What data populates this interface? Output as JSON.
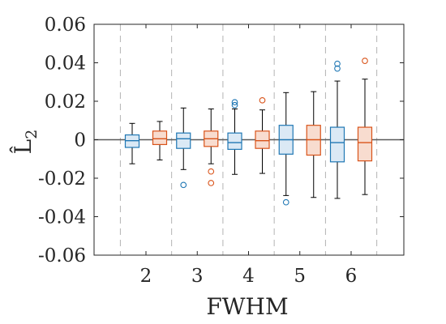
{
  "chart_data": {
    "type": "box",
    "xlabel": "FWHM",
    "ylabel": "L̂",
    "ylabel_subscript": "2",
    "ylim": [
      -0.06,
      0.06
    ],
    "yticks": [
      -0.06,
      -0.04,
      -0.02,
      0,
      0.02,
      0.04,
      0.06
    ],
    "ytick_labels": [
      "-0.06",
      "-0.04",
      "-0.02",
      "0",
      "0.02",
      "0.04",
      "0.06"
    ],
    "categories": [
      "2",
      "3",
      "4",
      "5",
      "6"
    ],
    "reference_line": 0,
    "grid": false,
    "series": [
      {
        "color": "#1f77b4",
        "fill": "#dbe9f5",
        "boxes": [
          {
            "category": "2",
            "whisker_low": -0.0125,
            "q1": -0.004,
            "median": -0.0005,
            "q3": 0.0025,
            "whisker_high": 0.0085,
            "outliers": []
          },
          {
            "category": "3",
            "whisker_low": -0.0155,
            "q1": -0.0045,
            "median": 0.0005,
            "q3": 0.0035,
            "whisker_high": 0.0165,
            "outliers": [
              -0.0235
            ]
          },
          {
            "category": "4",
            "whisker_low": -0.018,
            "q1": -0.005,
            "median": -0.0015,
            "q3": 0.0035,
            "whisker_high": 0.016,
            "outliers": [
              0.018,
              0.0195
            ]
          },
          {
            "category": "5",
            "whisker_low": -0.029,
            "q1": -0.0075,
            "median": 0.0,
            "q3": 0.0075,
            "whisker_high": 0.0245,
            "outliers": [
              -0.0325
            ]
          },
          {
            "category": "6",
            "whisker_low": -0.0305,
            "q1": -0.0115,
            "median": -0.0015,
            "q3": 0.0065,
            "whisker_high": 0.0305,
            "outliers": [
              0.037,
              0.0395
            ]
          }
        ]
      },
      {
        "color": "#d95319",
        "fill": "#f8dccf",
        "boxes": [
          {
            "category": "2",
            "whisker_low": -0.0105,
            "q1": -0.0025,
            "median": 0.0005,
            "q3": 0.0045,
            "whisker_high": 0.0095,
            "outliers": []
          },
          {
            "category": "3",
            "whisker_low": -0.0125,
            "q1": -0.0035,
            "median": 0.0005,
            "q3": 0.0045,
            "whisker_high": 0.016,
            "outliers": [
              -0.0165,
              -0.0225
            ]
          },
          {
            "category": "4",
            "whisker_low": -0.0175,
            "q1": -0.0045,
            "median": -0.0005,
            "q3": 0.0045,
            "whisker_high": 0.0155,
            "outliers": [
              0.0205
            ]
          },
          {
            "category": "5",
            "whisker_low": -0.03,
            "q1": -0.008,
            "median": 0.0,
            "q3": 0.0075,
            "whisker_high": 0.025,
            "outliers": []
          },
          {
            "category": "6",
            "whisker_low": -0.0285,
            "q1": -0.011,
            "median": -0.0015,
            "q3": 0.0065,
            "whisker_high": 0.0315,
            "outliers": [
              0.041
            ]
          }
        ]
      }
    ]
  }
}
